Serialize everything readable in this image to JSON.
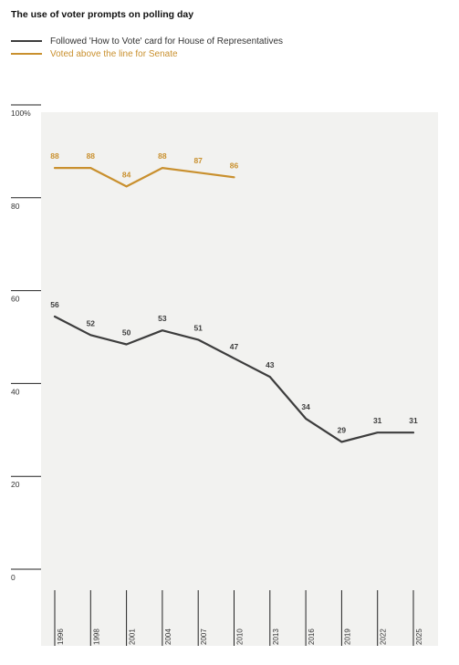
{
  "chart_data": {
    "type": "line",
    "title": "The use of voter prompts on polling day",
    "categories": [
      "1996",
      "1998",
      "2001",
      "2004",
      "2007",
      "2010",
      "2013",
      "2016",
      "2019",
      "2022",
      "2025"
    ],
    "series": [
      {
        "name": "Followed 'How to Vote' card for House of Representatives",
        "color": "#3d3d3d",
        "values": [
          56,
          52,
          50,
          53,
          51,
          47,
          43,
          34,
          29,
          31,
          31
        ]
      },
      {
        "name": "Voted above the line for Senate",
        "color": "#c9902e",
        "values": [
          88,
          88,
          84,
          88,
          87,
          86,
          null,
          null,
          null,
          null,
          null
        ]
      }
    ],
    "ylim": [
      0,
      100
    ],
    "yticks": [
      "0",
      "20",
      "40",
      "60",
      "80",
      "100%"
    ],
    "grid": false,
    "legend": "top-left",
    "background": "#f2f2f0"
  }
}
